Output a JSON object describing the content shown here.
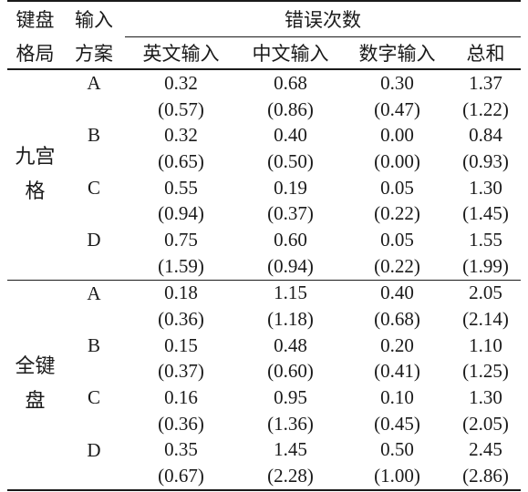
{
  "headers": {
    "layout_line1": "键盘",
    "layout_line2": "格局",
    "scheme_line1": "输入",
    "scheme_line2": "方案",
    "error_count": "错误次数",
    "cols": [
      "英文输入",
      "中文输入",
      "数字输入",
      "总和"
    ]
  },
  "groups": [
    {
      "layout_line1": "九宫",
      "layout_line2": "格",
      "schemes": [
        {
          "id": "A",
          "means": [
            "0.32",
            "0.68",
            "0.30",
            "1.37"
          ],
          "sd": [
            "(0.57)",
            "(0.86)",
            "(0.47)",
            "(1.22)"
          ]
        },
        {
          "id": "B",
          "means": [
            "0.32",
            "0.40",
            "0.00",
            "0.84"
          ],
          "sd": [
            "(0.65)",
            "(0.50)",
            "(0.00)",
            "(0.93)"
          ]
        },
        {
          "id": "C",
          "means": [
            "0.55",
            "0.19",
            "0.05",
            "1.30"
          ],
          "sd": [
            "(0.94)",
            "(0.37)",
            "(0.22)",
            "(1.45)"
          ]
        },
        {
          "id": "D",
          "means": [
            "0.75",
            "0.60",
            "0.05",
            "1.55"
          ],
          "sd": [
            "(1.59)",
            "(0.94)",
            "(0.22)",
            "(1.99)"
          ]
        }
      ]
    },
    {
      "layout_line1": "全键",
      "layout_line2": "盘",
      "schemes": [
        {
          "id": "A",
          "means": [
            "0.18",
            "1.15",
            "0.40",
            "2.05"
          ],
          "sd": [
            "(0.36)",
            "(1.18)",
            "(0.68)",
            "(2.14)"
          ]
        },
        {
          "id": "B",
          "means": [
            "0.15",
            "0.48",
            "0.20",
            "1.10"
          ],
          "sd": [
            "(0.37)",
            "(0.60)",
            "(0.41)",
            "(1.25)"
          ]
        },
        {
          "id": "C",
          "means": [
            "0.16",
            "0.95",
            "0.10",
            "1.30"
          ],
          "sd": [
            "(0.36)",
            "(1.36)",
            "(0.45)",
            "(2.05)"
          ]
        },
        {
          "id": "D",
          "means": [
            "0.35",
            "1.45",
            "0.50",
            "2.45"
          ],
          "sd": [
            "(0.67)",
            "(2.28)",
            "(1.00)",
            "(2.86)"
          ]
        }
      ]
    }
  ]
}
